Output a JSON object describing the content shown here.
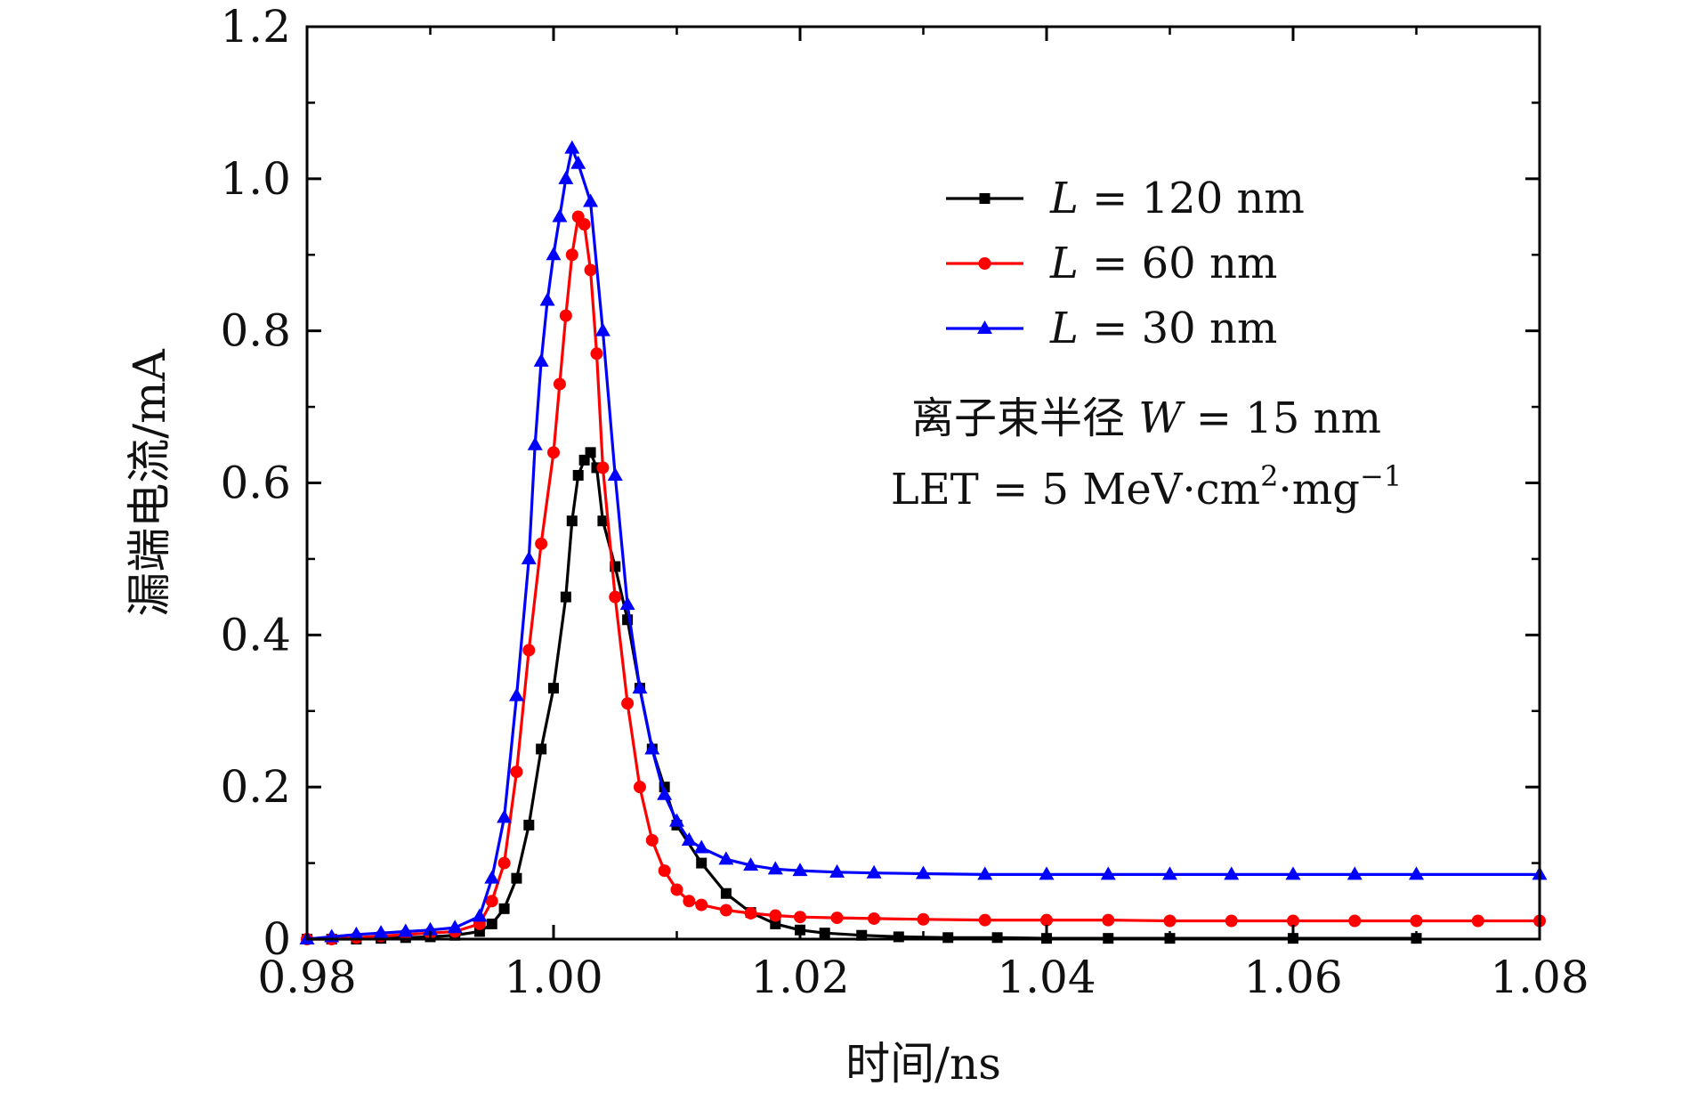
{
  "chart_data": {
    "type": "line",
    "title": "",
    "xlabel": "时间/ns",
    "ylabel": "漏端电流/mA",
    "xlim": [
      0.98,
      1.08
    ],
    "ylim": [
      0,
      1.2
    ],
    "xticks": [
      "0.98",
      "1.00",
      "1.02",
      "1.04",
      "1.06",
      "1.08"
    ],
    "yticks": [
      "0",
      "0.2",
      "0.4",
      "0.6",
      "0.8",
      "1.0",
      "1.2"
    ],
    "grid": false,
    "legend_position": "top-right",
    "annotation_lines": [
      [
        "离子束半径 ",
        "W",
        " = 15 nm"
      ],
      [
        "LET = 5 MeV·cm",
        "2",
        "·mg",
        "−1"
      ]
    ],
    "series": [
      {
        "name": "L = 120 nm",
        "legend_italic": "L",
        "legend_rest": " = 120 nm",
        "color": "#000000",
        "marker": "square",
        "x": [
          0.98,
          0.982,
          0.984,
          0.986,
          0.988,
          0.99,
          0.992,
          0.994,
          0.995,
          0.996,
          0.997,
          0.998,
          0.999,
          1.0,
          1.001,
          1.0015,
          1.002,
          1.0025,
          1.003,
          1.0035,
          1.004,
          1.005,
          1.006,
          1.007,
          1.008,
          1.009,
          1.01,
          1.012,
          1.014,
          1.016,
          1.018,
          1.02,
          1.022,
          1.025,
          1.028,
          1.032,
          1.036,
          1.04,
          1.045,
          1.05,
          1.06,
          1.07
        ],
        "y": [
          0.0,
          0.0,
          0.0,
          0.001,
          0.002,
          0.003,
          0.005,
          0.01,
          0.02,
          0.04,
          0.08,
          0.15,
          0.25,
          0.33,
          0.45,
          0.55,
          0.61,
          0.63,
          0.64,
          0.62,
          0.55,
          0.49,
          0.42,
          0.33,
          0.25,
          0.2,
          0.15,
          0.1,
          0.06,
          0.035,
          0.02,
          0.012,
          0.008,
          0.005,
          0.003,
          0.002,
          0.002,
          0.001,
          0.001,
          0.001,
          0.001,
          0.001
        ]
      },
      {
        "name": "L = 60 nm",
        "legend_italic": "L",
        "legend_rest": " = 60 nm",
        "color": "#ff0000",
        "marker": "circle",
        "x": [
          0.98,
          0.982,
          0.984,
          0.986,
          0.988,
          0.99,
          0.992,
          0.994,
          0.995,
          0.996,
          0.997,
          0.998,
          0.999,
          1.0,
          1.0005,
          1.001,
          1.0015,
          1.002,
          1.0025,
          1.003,
          1.0035,
          1.004,
          1.005,
          1.006,
          1.007,
          1.008,
          1.009,
          1.01,
          1.011,
          1.012,
          1.014,
          1.016,
          1.018,
          1.02,
          1.023,
          1.026,
          1.03,
          1.035,
          1.04,
          1.045,
          1.05,
          1.055,
          1.06,
          1.065,
          1.07,
          1.075,
          1.08
        ],
        "y": [
          0.0,
          0.0,
          0.002,
          0.004,
          0.006,
          0.008,
          0.01,
          0.02,
          0.05,
          0.1,
          0.22,
          0.38,
          0.52,
          0.64,
          0.73,
          0.82,
          0.9,
          0.95,
          0.94,
          0.88,
          0.77,
          0.62,
          0.45,
          0.31,
          0.2,
          0.13,
          0.09,
          0.065,
          0.05,
          0.045,
          0.038,
          0.034,
          0.031,
          0.029,
          0.028,
          0.027,
          0.026,
          0.025,
          0.025,
          0.025,
          0.024,
          0.024,
          0.024,
          0.024,
          0.024,
          0.024,
          0.024
        ]
      },
      {
        "name": "L = 30 nm",
        "legend_italic": "L",
        "legend_rest": " = 30 nm",
        "color": "#0000ff",
        "marker": "triangle",
        "x": [
          0.98,
          0.982,
          0.984,
          0.986,
          0.988,
          0.99,
          0.992,
          0.994,
          0.995,
          0.996,
          0.997,
          0.998,
          0.9985,
          0.999,
          0.9995,
          1.0,
          1.0005,
          1.001,
          1.0015,
          1.002,
          1.003,
          1.004,
          1.005,
          1.006,
          1.007,
          1.008,
          1.009,
          1.01,
          1.011,
          1.012,
          1.014,
          1.016,
          1.018,
          1.02,
          1.023,
          1.026,
          1.03,
          1.035,
          1.04,
          1.045,
          1.05,
          1.055,
          1.06,
          1.065,
          1.07,
          1.08
        ],
        "y": [
          0.0,
          0.003,
          0.006,
          0.008,
          0.01,
          0.012,
          0.015,
          0.03,
          0.08,
          0.16,
          0.32,
          0.5,
          0.65,
          0.76,
          0.84,
          0.9,
          0.95,
          1.0,
          1.04,
          1.02,
          0.97,
          0.8,
          0.61,
          0.44,
          0.33,
          0.25,
          0.19,
          0.155,
          0.13,
          0.12,
          0.105,
          0.097,
          0.092,
          0.09,
          0.088,
          0.087,
          0.086,
          0.085,
          0.085,
          0.085,
          0.085,
          0.085,
          0.085,
          0.085,
          0.085,
          0.085
        ]
      }
    ]
  }
}
